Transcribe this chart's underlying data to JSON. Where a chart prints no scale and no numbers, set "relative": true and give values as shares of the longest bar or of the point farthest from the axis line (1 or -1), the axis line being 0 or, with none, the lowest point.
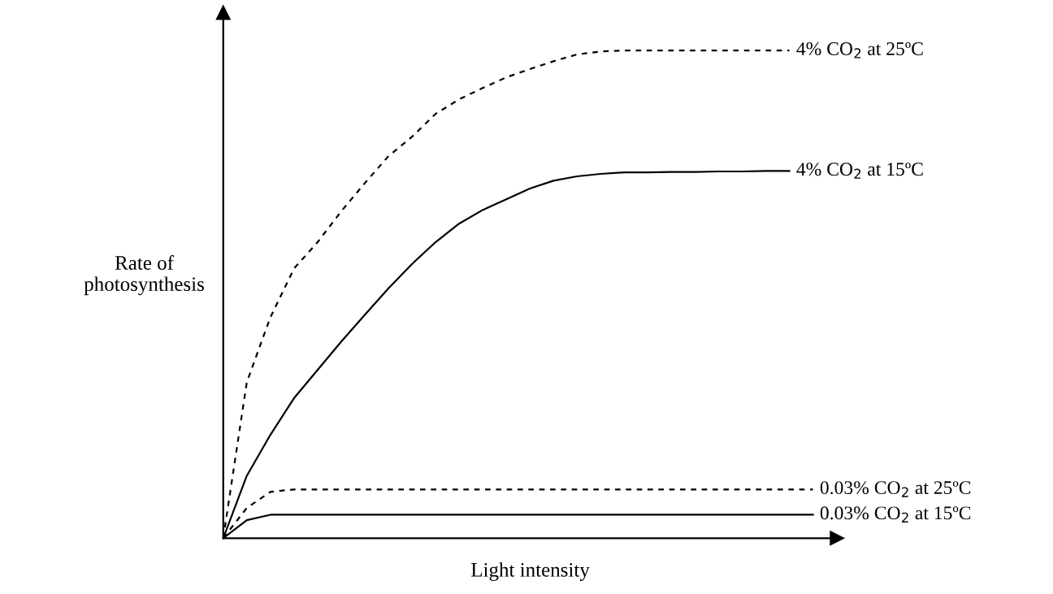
{
  "chart_data": {
    "type": "line",
    "relative": true,
    "xlabel": "Light intensity",
    "ylabel": "Rate of\nphotosynthesis",
    "legend": false,
    "grid": false,
    "marker": "none",
    "categories": [
      null,
      null,
      null,
      null,
      null,
      null,
      null,
      null,
      null,
      null,
      null,
      null,
      null,
      null,
      null,
      null,
      null,
      null,
      null,
      null,
      null,
      null,
      null,
      null,
      null,
      null
    ],
    "series": [
      {
        "name": "4% CO$_{2}$ at 25ºC",
        "color": "#000000",
        "line_style": "dashed",
        "values": [
          0,
          0.32,
          0.453,
          0.553,
          0.607,
          0.67,
          0.728,
          0.783,
          0.823,
          0.87,
          0.9,
          0.923,
          0.945,
          0.962,
          0.978,
          0.992,
          0.998,
          1,
          1,
          1,
          1,
          1,
          1,
          1,
          1,
          null
        ]
      },
      {
        "name": "4% CO$_{2}$ at 15ºC",
        "color": "#000000",
        "line_style": "solid",
        "values": [
          0,
          0.128,
          0.212,
          0.287,
          0.345,
          0.403,
          0.458,
          0.512,
          0.562,
          0.607,
          0.645,
          0.673,
          0.695,
          0.717,
          0.733,
          0.742,
          0.747,
          0.75,
          0.75,
          0.751,
          0.751,
          0.752,
          0.752,
          0.753,
          0.753,
          null
        ]
      },
      {
        "name": "0.03% CO$_{2}$ at 25ºC",
        "color": "#000000",
        "line_style": "dashed",
        "values": [
          0,
          0.062,
          0.095,
          0.1,
          0.1,
          0.1,
          0.1,
          0.1,
          0.1,
          0.1,
          0.1,
          0.1,
          0.1,
          0.1,
          0.1,
          0.1,
          0.1,
          0.1,
          0.1,
          0.1,
          0.1,
          0.1,
          0.1,
          0.1,
          0.1,
          0.1
        ]
      },
      {
        "name": "0.03% CO$_{2}$ at 15ºC",
        "color": "#000000",
        "line_style": "solid",
        "values": [
          0,
          0.037,
          0.048,
          0.048,
          0.048,
          0.048,
          0.048,
          0.048,
          0.048,
          0.048,
          0.048,
          0.048,
          0.048,
          0.048,
          0.048,
          0.048,
          0.048,
          0.048,
          0.048,
          0.048,
          0.048,
          0.048,
          0.048,
          0.048,
          0.048,
          0.048
        ]
      }
    ]
  }
}
